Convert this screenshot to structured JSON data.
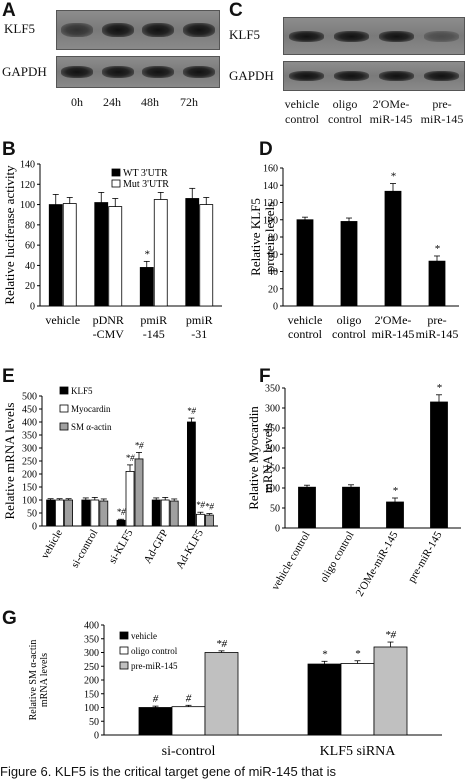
{
  "panels": {
    "A": {
      "letter": "A",
      "blots": [
        "KLF5",
        "GAPDH"
      ],
      "lanes": [
        "0h",
        "24h",
        "48h",
        "72h"
      ],
      "klf5_band_intensity": [
        0.7,
        1.0,
        1.0,
        1.0
      ],
      "gapdh_band_intensity": [
        1.0,
        1.0,
        1.0,
        1.0
      ]
    },
    "C": {
      "letter": "C",
      "blots": [
        "KLF5",
        "GAPDH"
      ],
      "lanes": [
        {
          "line1": "vehicle",
          "line2": "control"
        },
        {
          "line1": "oligo",
          "line2": "control"
        },
        {
          "line1": "2'OMe-",
          "line2": "miR-145"
        },
        {
          "line1": "pre-",
          "line2": "miR-145"
        }
      ],
      "klf5_band_intensity": [
        1.0,
        1.0,
        1.0,
        0.45
      ],
      "gapdh_band_intensity": [
        1.0,
        1.0,
        1.0,
        1.0
      ]
    },
    "B": {
      "letter": "B"
    },
    "D": {
      "letter": "D"
    },
    "E": {
      "letter": "E"
    },
    "F": {
      "letter": "F"
    },
    "G": {
      "letter": "G"
    }
  },
  "chart_data": [
    {
      "panel": "B",
      "type": "bar",
      "ylabel": "Relative luciferase activity",
      "ylim": [
        0,
        140
      ],
      "yticks": [
        0,
        20,
        40,
        60,
        80,
        100,
        120,
        140
      ],
      "categories": [
        {
          "line1": "vehicle",
          "line2": ""
        },
        {
          "line1": "pDNR",
          "line2": "-CMV"
        },
        {
          "line1": "pmiR",
          "line2": "-145"
        },
        {
          "line1": "pmiR",
          "line2": "-31"
        }
      ],
      "legend": "top-left",
      "series": [
        {
          "name": "WT 3'UTR",
          "color": "#000000",
          "values": [
            100,
            102,
            38,
            106
          ],
          "errors": [
            10,
            10,
            6,
            10
          ]
        },
        {
          "name": "Mut 3'UTR",
          "color": "#ffffff",
          "values": [
            101,
            98,
            105,
            100
          ],
          "errors": [
            6,
            8,
            7,
            7
          ]
        }
      ],
      "annotations": [
        {
          "category": 2,
          "series": 0,
          "text": "*"
        }
      ]
    },
    {
      "panel": "D",
      "type": "bar",
      "ylabel": [
        "Relative KLF5",
        "protein levels"
      ],
      "ylim": [
        0,
        160
      ],
      "yticks": [
        0,
        20,
        40,
        60,
        80,
        100,
        120,
        140,
        160
      ],
      "categories": [
        {
          "line1": "vehicle",
          "line2": "control"
        },
        {
          "line1": "oligo",
          "line2": "control"
        },
        {
          "line1": "2'OMe-",
          "line2": "miR-145"
        },
        {
          "line1": "pre-",
          "line2": "miR-145"
        }
      ],
      "series": [
        {
          "color": "#000000",
          "values": [
            100,
            98,
            133,
            52
          ],
          "errors": [
            3,
            4,
            9,
            6
          ]
        }
      ],
      "annotations": [
        {
          "category": 2,
          "series": 0,
          "text": "*"
        },
        {
          "category": 3,
          "series": 0,
          "text": "*"
        }
      ]
    },
    {
      "panel": "E",
      "type": "bar",
      "ylabel": "Relative mRNA levels",
      "ylim": [
        0,
        500
      ],
      "yticks": [
        0,
        50,
        100,
        150,
        200,
        250,
        300,
        350,
        400,
        450,
        500
      ],
      "categories": [
        "vehicle",
        "si-control",
        "si-KLF5",
        "Ad-GFP",
        "Ad-KLF5"
      ],
      "legend": "top-left",
      "series": [
        {
          "name": "KLF5",
          "color": "#000000",
          "values": [
            100,
            100,
            22,
            100,
            400
          ],
          "errors": [
            5,
            8,
            4,
            8,
            15
          ]
        },
        {
          "name": "Myocardin",
          "color": "#ffffff",
          "values": [
            100,
            100,
            210,
            100,
            45
          ],
          "errors": [
            5,
            10,
            25,
            10,
            8
          ]
        },
        {
          "name": "SM α-actin",
          "color": "#a0a0a0",
          "values": [
            100,
            96,
            258,
            96,
            42
          ],
          "errors": [
            5,
            8,
            25,
            8,
            6
          ]
        }
      ],
      "annotations": [
        {
          "category": 2,
          "series": 0,
          "text": "*#"
        },
        {
          "category": 2,
          "series": 1,
          "text": "*#"
        },
        {
          "category": 2,
          "series": 2,
          "text": "*#"
        },
        {
          "category": 4,
          "series": 0,
          "text": "*#"
        },
        {
          "category": 4,
          "series": 1,
          "text": "*#"
        },
        {
          "category": 4,
          "series": 2,
          "text": "*#"
        }
      ]
    },
    {
      "panel": "F",
      "type": "bar",
      "ylabel": [
        "Relative Myocardin",
        "mRNA levels"
      ],
      "ylim": [
        0,
        350
      ],
      "yticks": [
        0,
        50,
        100,
        150,
        200,
        250,
        300,
        350
      ],
      "categories": [
        "vehicle control",
        "oligo control",
        "2'OMe-miR-145",
        "pre-miR-145"
      ],
      "series": [
        {
          "color": "#000000",
          "values": [
            102,
            102,
            65,
            315
          ],
          "errors": [
            5,
            6,
            10,
            18
          ]
        }
      ],
      "annotations": [
        {
          "category": 2,
          "series": 0,
          "text": "*"
        },
        {
          "category": 3,
          "series": 0,
          "text": "*"
        }
      ]
    },
    {
      "panel": "G",
      "type": "bar",
      "ylabel": [
        "Relative SM α-actin",
        "mRNA levels"
      ],
      "ylim": [
        0,
        400
      ],
      "yticks": [
        0,
        50,
        100,
        150,
        200,
        250,
        300,
        350,
        400
      ],
      "categories": [
        "si-control",
        "KLF5 siRNA"
      ],
      "legend": "top-left",
      "series": [
        {
          "name": "vehicle",
          "color": "#000000",
          "values": [
            100,
            258
          ],
          "errors": [
            5,
            10
          ]
        },
        {
          "name": "oligo control",
          "color": "#ffffff",
          "values": [
            103,
            260
          ],
          "errors": [
            5,
            10
          ]
        },
        {
          "name": "pre-miR-145",
          "color": "#c0c0c0",
          "values": [
            300,
            320
          ],
          "errors": [
            6,
            18
          ]
        }
      ],
      "annotations": [
        {
          "category": 0,
          "series": 0,
          "text": "#"
        },
        {
          "category": 0,
          "series": 1,
          "text": "#"
        },
        {
          "category": 0,
          "series": 2,
          "text": "*#"
        },
        {
          "category": 1,
          "series": 0,
          "text": "*"
        },
        {
          "category": 1,
          "series": 1,
          "text": "*"
        },
        {
          "category": 1,
          "series": 2,
          "text": "*#"
        }
      ]
    }
  ],
  "caption": {
    "text": "Figure 6. KLF5 is the critical target gene of miR-145 that is"
  }
}
